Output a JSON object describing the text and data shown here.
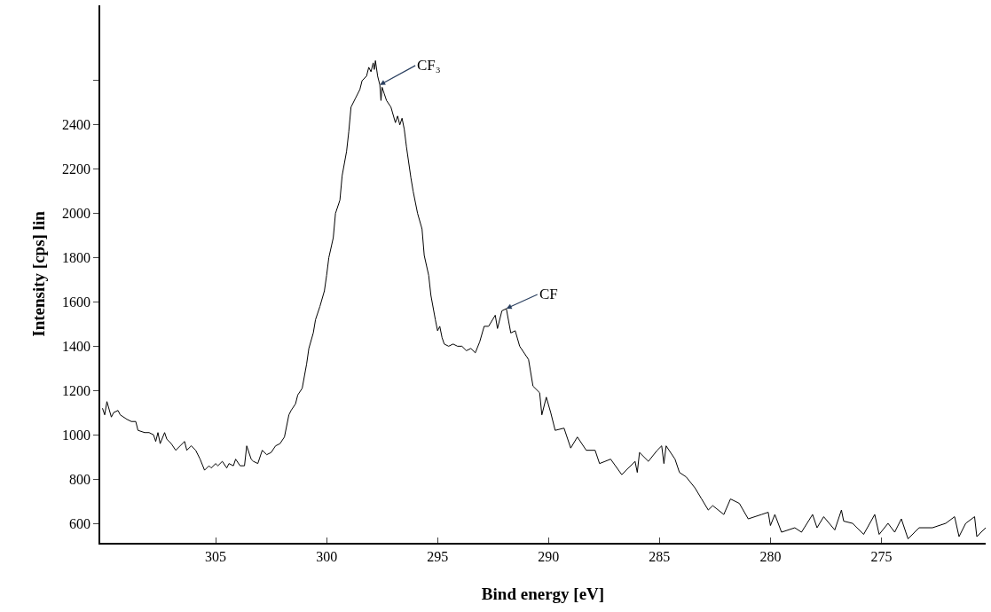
{
  "chart_data": {
    "type": "line",
    "xlabel": "Bind energy [eV]",
    "ylabel": "Intensity [cps] lin",
    "xlim": [
      310.2,
      270.3
    ],
    "xticks": [
      305,
      300,
      295,
      290,
      285,
      280,
      275
    ],
    "ylim": [
      512,
      2940
    ],
    "yticks": [
      600,
      800,
      1000,
      1200,
      1400,
      1600,
      1800,
      2000,
      2200,
      2400,
      {
        "value": 2600,
        "label": null
      }
    ],
    "marker": "none",
    "line_style": "solid",
    "annotations": [
      {
        "text": "CF₃",
        "x": 297.6,
        "y": 2580
      },
      {
        "text": "CF",
        "x": 291.9,
        "y": 1570
      }
    ],
    "series": [
      {
        "color": "#000000",
        "x": [
          310.1,
          310.0,
          309.9,
          309.7,
          309.6,
          309.4,
          309.3,
          309.0,
          308.8,
          308.6,
          308.5,
          308.2,
          308.0,
          307.8,
          307.7,
          307.6,
          307.5,
          307.3,
          307.2,
          307.0,
          306.8,
          306.6,
          306.4,
          306.3,
          306.1,
          305.9,
          305.7,
          305.5,
          305.3,
          305.2,
          305.0,
          304.9,
          304.7,
          304.5,
          304.4,
          304.2,
          304.1,
          303.9,
          303.7,
          303.6,
          303.4,
          303.3,
          303.1,
          302.9,
          302.7,
          302.5,
          302.3,
          302.1,
          301.9,
          301.7,
          301.6,
          301.4,
          301.3,
          301.1,
          300.9,
          300.8,
          300.6,
          300.5,
          300.3,
          300.1,
          300.0,
          299.9,
          299.7,
          299.6,
          299.4,
          299.3,
          299.1,
          299.0,
          298.9,
          298.7,
          298.5,
          298.4,
          298.2,
          298.1,
          298.0,
          297.9,
          297.85,
          297.8,
          297.7,
          297.6,
          297.55,
          297.5,
          297.4,
          297.3,
          297.1,
          296.9,
          296.8,
          296.7,
          296.6,
          296.5,
          296.4,
          296.2,
          296.1,
          295.9,
          295.7,
          295.6,
          295.4,
          295.3,
          295.1,
          295.0,
          294.9,
          294.8,
          294.7,
          294.5,
          294.3,
          294.1,
          293.9,
          293.7,
          293.5,
          293.3,
          293.1,
          292.9,
          292.7,
          292.4,
          292.3,
          292.1,
          291.9,
          291.7,
          291.5,
          291.3,
          290.9,
          290.7,
          290.4,
          290.3,
          290.1,
          289.9,
          289.7,
          289.3,
          289.0,
          288.7,
          288.3,
          287.9,
          287.7,
          287.2,
          286.7,
          286.1,
          286.0,
          285.9,
          285.5,
          285.1,
          284.9,
          284.8,
          284.7,
          284.3,
          284.1,
          283.8,
          283.4,
          283.1,
          282.8,
          282.6,
          282.1,
          281.8,
          281.4,
          281.0,
          280.4,
          280.1,
          280.0,
          279.8,
          279.5,
          278.9,
          278.6,
          278.1,
          277.9,
          277.6,
          277.1,
          276.8,
          276.7,
          276.3,
          275.8,
          275.3,
          275.1,
          274.7,
          274.4,
          274.1,
          273.8,
          273.3,
          272.7,
          272.1,
          271.7,
          271.5,
          271.2,
          270.8,
          270.7,
          270.3
        ],
        "values": [
          1120,
          1090,
          1150,
          1080,
          1100,
          1110,
          1090,
          1070,
          1060,
          1060,
          1020,
          1010,
          1010,
          1000,
          970,
          1010,
          960,
          1010,
          980,
          960,
          930,
          950,
          970,
          930,
          950,
          930,
          890,
          840,
          860,
          850,
          870,
          860,
          880,
          850,
          870,
          860,
          890,
          860,
          860,
          950,
          890,
          880,
          870,
          930,
          910,
          920,
          950,
          960,
          990,
          1090,
          1110,
          1140,
          1180,
          1210,
          1320,
          1390,
          1460,
          1520,
          1580,
          1650,
          1720,
          1800,
          1890,
          2000,
          2060,
          2170,
          2280,
          2370,
          2480,
          2520,
          2560,
          2600,
          2620,
          2660,
          2640,
          2680,
          2650,
          2690,
          2620,
          2580,
          2510,
          2570,
          2540,
          2510,
          2480,
          2410,
          2440,
          2400,
          2430,
          2380,
          2300,
          2160,
          2100,
          2000,
          1930,
          1810,
          1720,
          1630,
          1520,
          1470,
          1490,
          1440,
          1410,
          1400,
          1410,
          1400,
          1400,
          1380,
          1390,
          1370,
          1420,
          1490,
          1490,
          1540,
          1480,
          1560,
          1570,
          1460,
          1470,
          1400,
          1340,
          1220,
          1190,
          1090,
          1170,
          1100,
          1020,
          1030,
          940,
          990,
          930,
          930,
          870,
          890,
          820,
          880,
          830,
          920,
          880,
          930,
          950,
          870,
          950,
          890,
          830,
          810,
          760,
          710,
          660,
          680,
          640,
          710,
          690,
          620,
          640,
          650,
          590,
          640,
          560,
          580,
          560,
          640,
          580,
          630,
          570,
          660,
          610,
          600,
          550,
          640,
          550,
          600,
          560,
          620,
          530,
          580,
          580,
          600,
          630,
          540,
          600,
          630,
          540,
          580
        ]
      }
    ]
  }
}
